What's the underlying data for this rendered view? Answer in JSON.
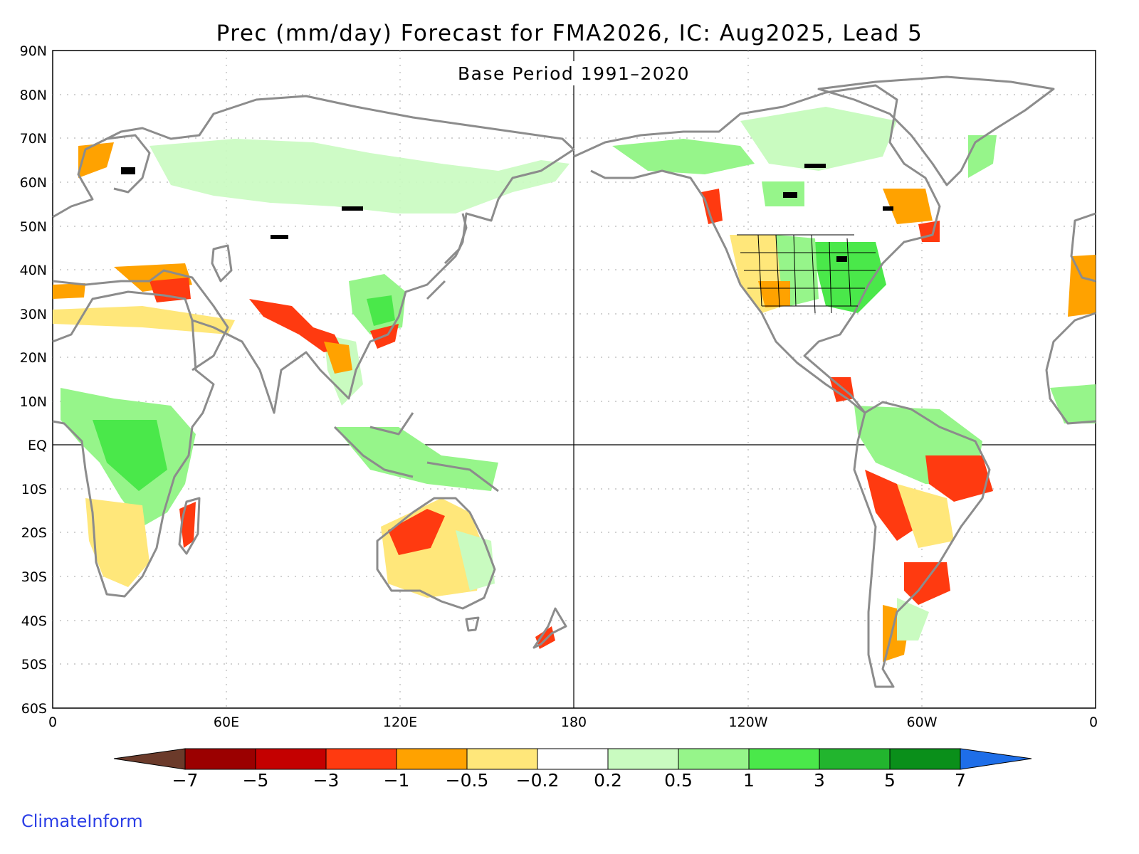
{
  "title": "Prec (mm/day) Forecast for FMA2026, IC: Aug2025, Lead 5",
  "subtitle": "Base Period 1991–2020",
  "credit": "ClimateInform",
  "lat_labels": [
    "90N",
    "80N",
    "70N",
    "60N",
    "50N",
    "40N",
    "30N",
    "20N",
    "10N",
    "EQ",
    "10S",
    "20S",
    "30S",
    "40S",
    "50S",
    "60S"
  ],
  "lon_labels": [
    "0",
    "60E",
    "120E",
    "180",
    "120W",
    "60W",
    "0"
  ],
  "colorbar": {
    "tick_labels": [
      "−7",
      "−5",
      "−3",
      "−1",
      "−0.5",
      "−0.2",
      "0.2",
      "0.5",
      "1",
      "3",
      "5",
      "7"
    ],
    "colors": [
      "#6b3a2a",
      "#9b0000",
      "#c40000",
      "#ff3a10",
      "#ffa200",
      "#ffe77a",
      "#ffffff",
      "#c9fbc0",
      "#96f58a",
      "#4ae84a",
      "#22b52e",
      "#0a8f1a",
      "#1e6ee8"
    ]
  },
  "colors": {
    "land_outline": "#8c8c8c",
    "lakes": "#000000",
    "grid": "#b0b0b0",
    "dry_strong": "#ff3a10",
    "dry_moderate": "#ffa200",
    "dry_weak": "#ffe77a",
    "wet_weak": "#c9fbc0",
    "wet_moderate": "#96f58a",
    "wet_strong": "#4ae84a"
  }
}
